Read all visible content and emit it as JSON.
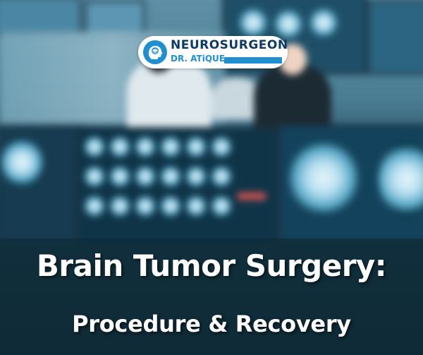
{
  "logo": {
    "line1": "NEUROSURGEON",
    "line2": "DR. ATiQUE",
    "icon": "brain-head-icon",
    "colors": {
      "dark": "#0d3b66",
      "accent": "#1f8fcf"
    }
  },
  "headline": {
    "title": "Brain Tumor Surgery:",
    "subtitle": "Procedure & Recovery"
  },
  "background": {
    "description_icon": "medical-monitors-scene"
  }
}
